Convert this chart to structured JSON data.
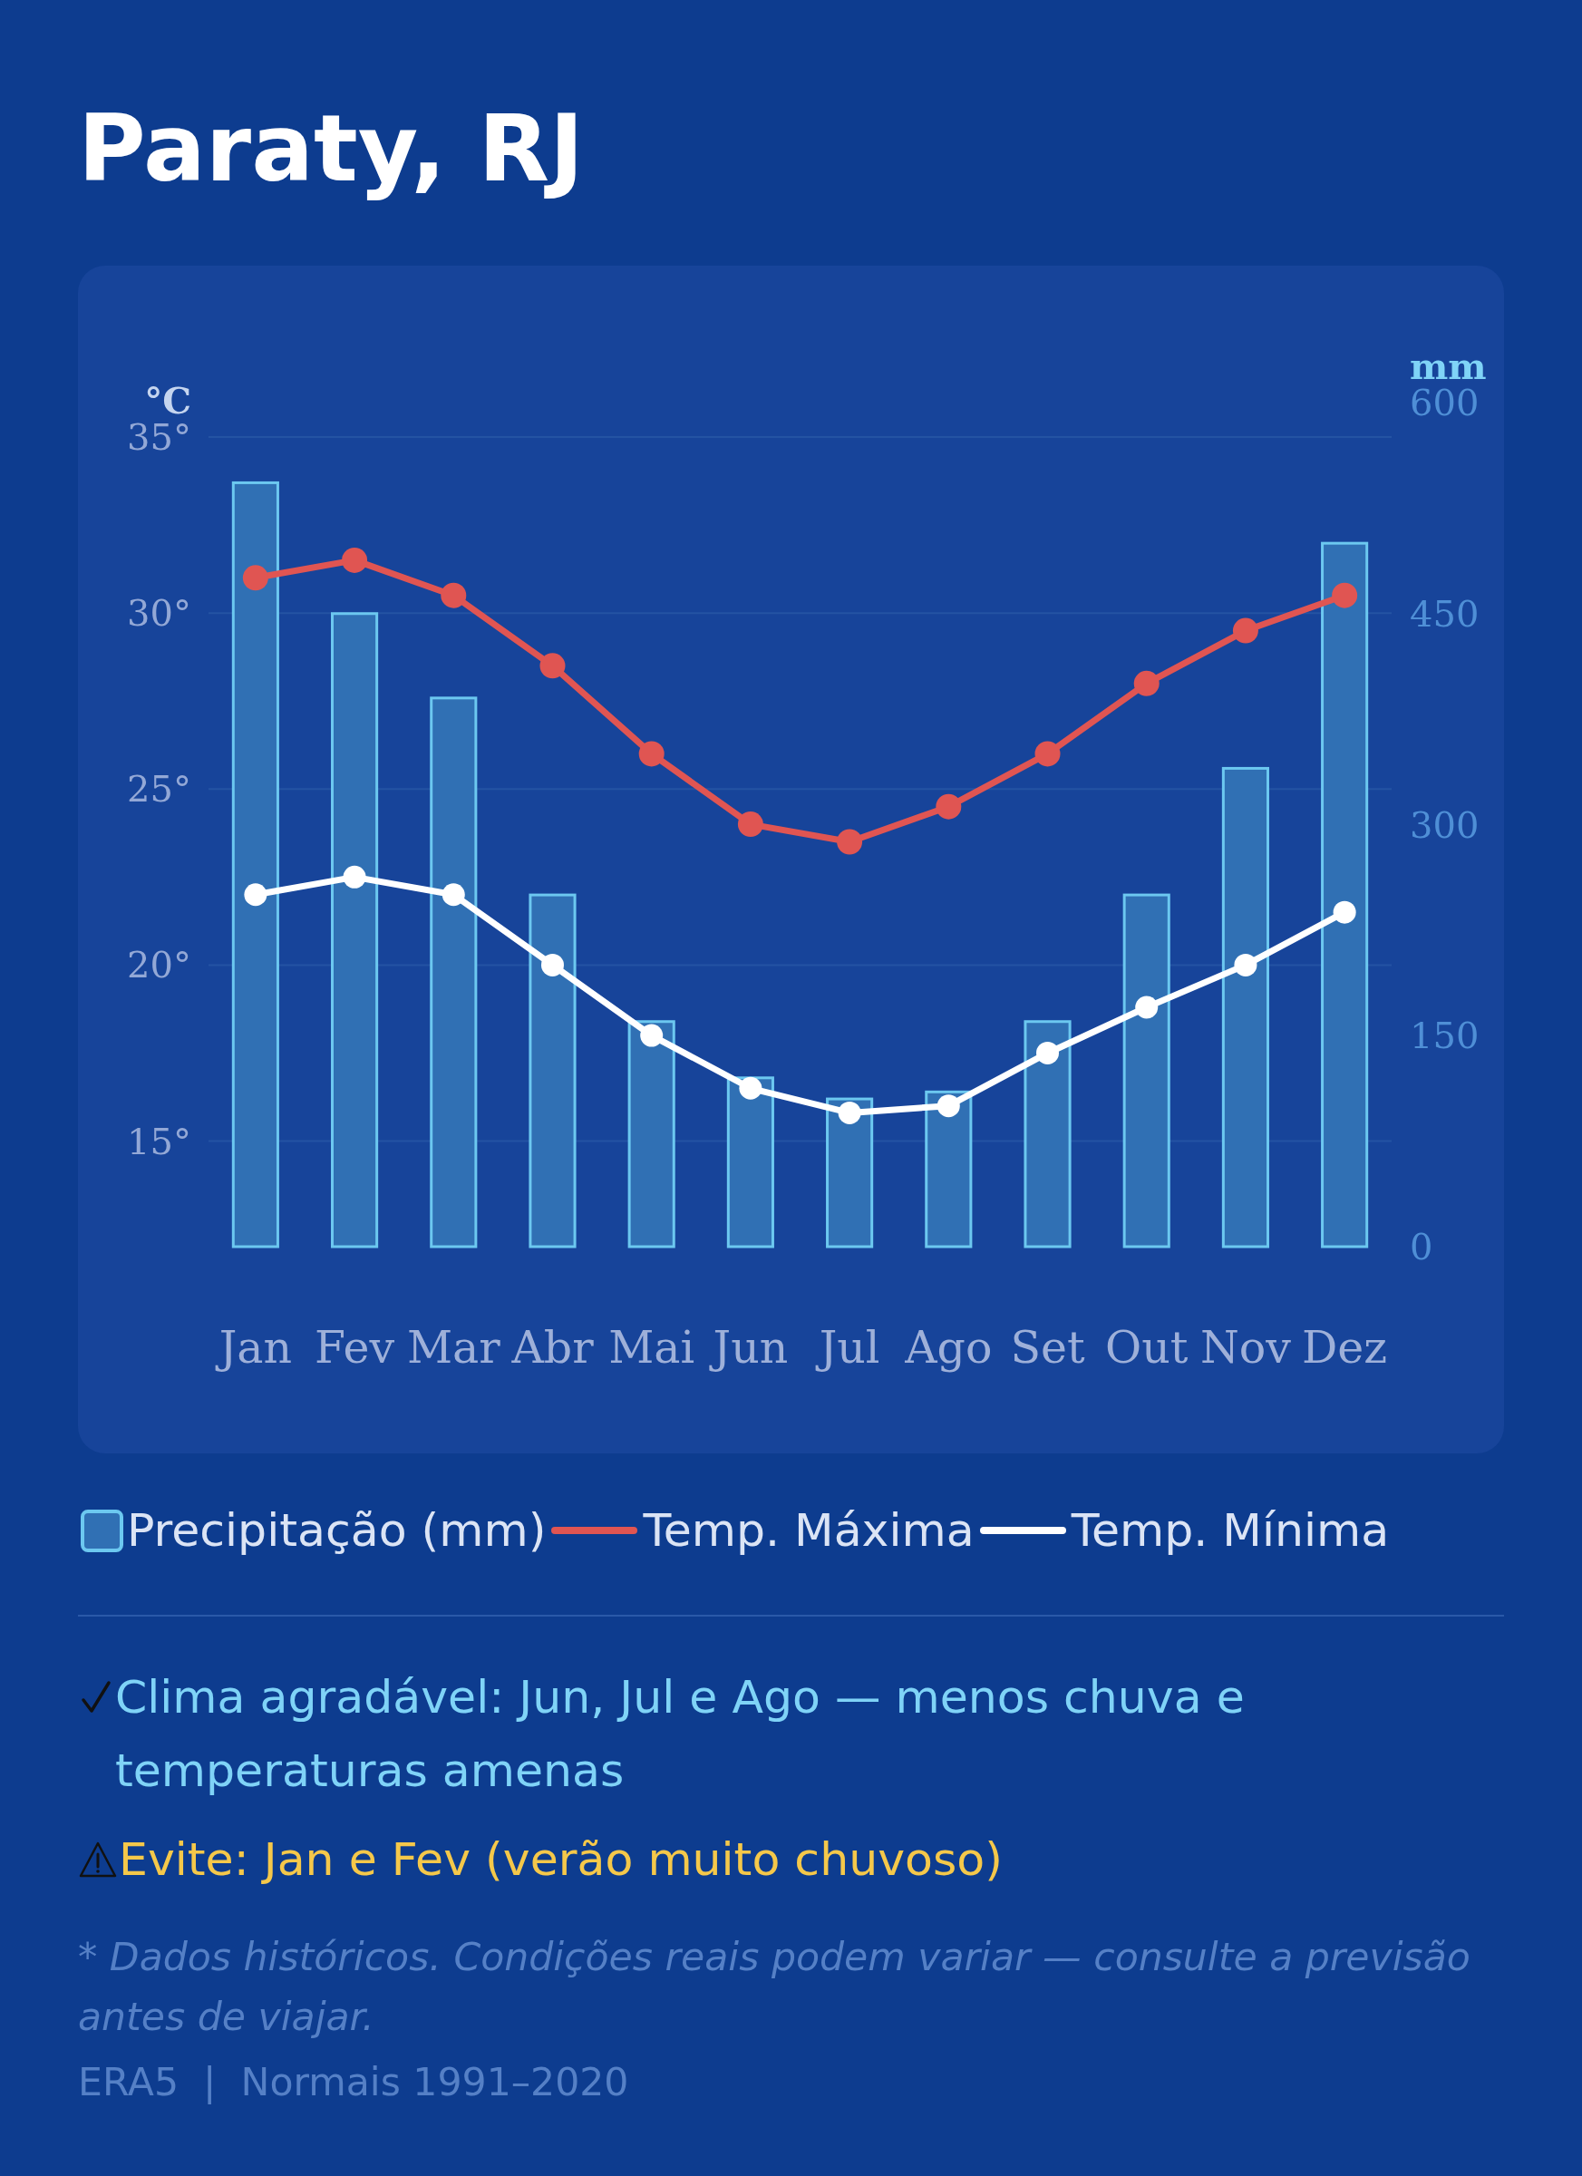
{
  "chart_data": {
    "type": "bar",
    "title": "Paraty, RJ",
    "ylabel": "°C",
    "y2label": "mm",
    "categories": [
      "Jan",
      "Fev",
      "Mar",
      "Abr",
      "Mai",
      "Jun",
      "Jul",
      "Ago",
      "Set",
      "Out",
      "Nov",
      "Dez"
    ],
    "series": [
      {
        "name": "Precipitação (mm)",
        "axis": "y2",
        "color": "#3070b4",
        "values": [
          543,
          450,
          390,
          250,
          160,
          120,
          105,
          110,
          160,
          250,
          340,
          500
        ]
      },
      {
        "name": "Temp. Máxima",
        "type": "line",
        "color": "#e05552",
        "values": [
          31,
          31.5,
          30.5,
          28.5,
          26,
          24,
          23.5,
          24.5,
          26,
          28,
          29.5,
          30.5
        ]
      },
      {
        "name": "Temp. Mínima",
        "type": "line",
        "color": "#ffffff",
        "values": [
          22,
          22.5,
          22,
          20,
          18,
          16.5,
          15.8,
          16,
          17.5,
          18.8,
          20,
          21.5
        ]
      }
    ],
    "ylim": [
      12,
      35
    ],
    "yticks": [
      {
        "value": 15,
        "label": "15°"
      },
      {
        "value": 20,
        "label": "20°"
      },
      {
        "value": 25,
        "label": "25°"
      },
      {
        "value": 30,
        "label": "30°"
      },
      {
        "value": 35,
        "label": "35°"
      }
    ],
    "y2lim": [
      0,
      600
    ],
    "y2ticks": [
      0,
      150,
      300,
      450,
      600
    ],
    "grid": "y",
    "legend": "bottom",
    "marker": "circle",
    "annotations": [
      "Clima agradável: Jun, Jul e Ago — menos chuva e temperaturas amenas",
      "Evite: Jan e Fev (verão muito chuvoso)",
      "* Dados históricos. Condições reais podem variar — consulte a previsão antes de viajar.",
      "ERA5  |  Normais 1991–2020"
    ]
  }
}
